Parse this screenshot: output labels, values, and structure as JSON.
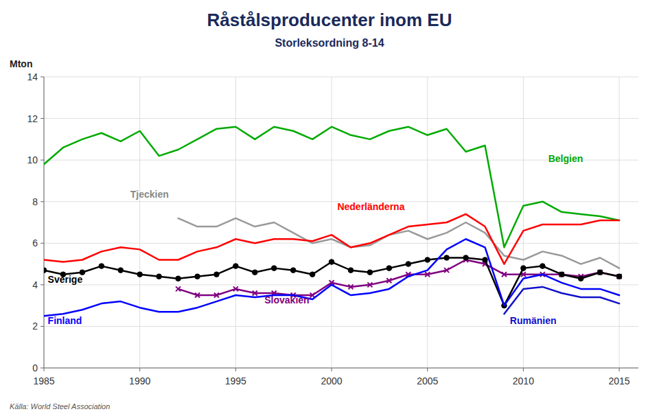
{
  "chart_data": {
    "type": "line",
    "title": "Råstålsproducenter inom EU",
    "subtitle": "Storleksordning 8-14",
    "y_label": "Mton",
    "source": "Källa: World Steel Association",
    "xlim": [
      1985,
      2016
    ],
    "xticks": [
      1985,
      1990,
      1995,
      2000,
      2005,
      2010,
      2015
    ],
    "ylim": [
      0,
      14
    ],
    "yticks": [
      0,
      2,
      4,
      6,
      8,
      10,
      12,
      14
    ],
    "grid": true,
    "x": [
      1985,
      1986,
      1987,
      1988,
      1989,
      1990,
      1991,
      1992,
      1993,
      1994,
      1995,
      1996,
      1997,
      1998,
      1999,
      2000,
      2001,
      2002,
      2003,
      2004,
      2005,
      2006,
      2007,
      2008,
      2009,
      2010,
      2011,
      2012,
      2013,
      2014,
      2015
    ],
    "series": [
      {
        "name": "Belgien",
        "color": "#00AA00",
        "values": [
          9.8,
          10.6,
          11.0,
          11.3,
          10.9,
          11.4,
          10.2,
          10.5,
          11.0,
          11.5,
          11.6,
          11.0,
          11.6,
          11.4,
          11.0,
          11.6,
          11.2,
          11.0,
          11.4,
          11.6,
          11.2,
          11.5,
          10.4,
          10.7,
          5.8,
          7.8,
          8.0,
          7.5,
          7.4,
          7.3,
          7.1
        ]
      },
      {
        "name": "Tjeckien",
        "color": "#999999",
        "values": [
          null,
          null,
          null,
          null,
          null,
          null,
          null,
          7.2,
          6.8,
          6.8,
          7.2,
          6.8,
          7.0,
          6.5,
          6.0,
          6.2,
          5.8,
          5.9,
          6.4,
          6.6,
          6.2,
          6.5,
          7.0,
          6.5,
          5.4,
          5.2,
          5.6,
          5.4,
          5.0,
          5.3,
          4.8
        ]
      },
      {
        "name": "Nederländerna",
        "color": "#FF0000",
        "values": [
          5.2,
          5.1,
          5.2,
          5.6,
          5.8,
          5.7,
          5.2,
          5.2,
          5.6,
          5.8,
          6.2,
          6.0,
          6.2,
          6.2,
          6.1,
          6.4,
          5.8,
          6.0,
          6.4,
          6.8,
          6.9,
          7.0,
          7.4,
          6.8,
          5.0,
          6.6,
          6.9,
          6.9,
          6.9,
          7.1,
          7.1
        ]
      },
      {
        "name": "Rumänien",
        "color": "#1010CC",
        "values": [
          null,
          null,
          null,
          null,
          null,
          null,
          null,
          null,
          null,
          null,
          null,
          null,
          null,
          null,
          null,
          null,
          null,
          null,
          null,
          null,
          null,
          null,
          null,
          null,
          2.6,
          3.8,
          3.9,
          3.6,
          3.4,
          3.4,
          3.1
        ]
      },
      {
        "name": "Slovakien",
        "color": "#800080",
        "marker": "cross",
        "values": [
          null,
          null,
          null,
          null,
          null,
          null,
          null,
          3.8,
          3.5,
          3.5,
          3.8,
          3.6,
          3.6,
          3.5,
          3.5,
          4.1,
          3.9,
          4.0,
          4.2,
          4.5,
          4.5,
          4.7,
          5.2,
          5.0,
          4.5,
          4.5,
          4.5,
          4.5,
          4.4,
          4.6,
          4.4
        ]
      },
      {
        "name": "Sverige",
        "color": "#000000",
        "marker": "circle",
        "values": [
          4.7,
          4.5,
          4.6,
          4.9,
          4.7,
          4.5,
          4.4,
          4.3,
          4.4,
          4.5,
          4.9,
          4.6,
          4.8,
          4.7,
          4.5,
          5.1,
          4.7,
          4.6,
          4.8,
          5.0,
          5.2,
          5.3,
          5.3,
          5.2,
          3.0,
          4.8,
          4.9,
          4.5,
          4.3,
          4.6,
          4.4
        ]
      },
      {
        "name": "Finland",
        "color": "#0000FF",
        "values": [
          2.5,
          2.6,
          2.8,
          3.1,
          3.2,
          2.9,
          2.7,
          2.7,
          2.9,
          3.2,
          3.5,
          3.4,
          3.5,
          3.5,
          3.3,
          4.0,
          3.5,
          3.6,
          3.8,
          4.4,
          4.7,
          5.7,
          6.2,
          5.8,
          3.0,
          4.3,
          4.5,
          4.1,
          3.8,
          3.8,
          3.5
        ]
      }
    ],
    "annotations": [
      {
        "text": "Belgien",
        "x": 2011.3,
        "y": 9.9,
        "color": "#00AA00"
      },
      {
        "text": "Tjeckien",
        "x": 1989.5,
        "y": 8.2,
        "color": "#888888"
      },
      {
        "text": "Nederländerna",
        "x": 2000.3,
        "y": 7.6,
        "color": "#FF0000"
      },
      {
        "text": "Sverige",
        "x": 1985.2,
        "y": 4.1,
        "color": "#000000"
      },
      {
        "text": "Finland",
        "x": 1985.2,
        "y": 2.1,
        "color": "#0000FF"
      },
      {
        "text": "Slovakien",
        "x": 1996.5,
        "y": 3.1,
        "color": "#800080"
      },
      {
        "text": "Rumänien",
        "x": 2009.3,
        "y": 2.1,
        "color": "#1010CC"
      }
    ]
  }
}
